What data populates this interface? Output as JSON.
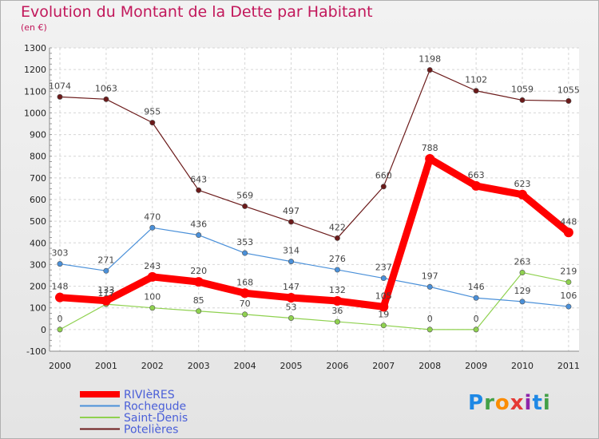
{
  "title": "Evolution du Montant de la Dette par Habitant",
  "subtitle": "(en €)",
  "logo": {
    "letters": [
      "P",
      "r",
      "o",
      "x",
      "i",
      "t",
      "i"
    ],
    "colors": [
      "#1e88e5",
      "#43a047",
      "#fb8c00",
      "#e53935",
      "#8e24aa",
      "#1e88e5",
      "#43a047"
    ]
  },
  "chart_data": {
    "type": "line",
    "x": [
      "2000",
      "2001",
      "2002",
      "2003",
      "2004",
      "2005",
      "2006",
      "2007",
      "2008",
      "2009",
      "2010",
      "2011"
    ],
    "ylim": [
      -100,
      1300
    ],
    "yticks": [
      -100,
      0,
      100,
      200,
      300,
      400,
      500,
      600,
      700,
      800,
      900,
      1000,
      1100,
      1200,
      1300
    ],
    "grid": true,
    "legend_position": "bottom-left",
    "series": [
      {
        "name": "RIVIèRES",
        "color": "#ff0000",
        "values": [
          148,
          133,
          243,
          220,
          168,
          147,
          132,
          105,
          788,
          663,
          623,
          448
        ]
      },
      {
        "name": "Rochegude",
        "color": "#4a90d9",
        "values": [
          303,
          271,
          470,
          436,
          353,
          314,
          276,
          237,
          197,
          146,
          129,
          106
        ]
      },
      {
        "name": "Saint-Denis",
        "color": "#8fd14f",
        "values": [
          0,
          117,
          100,
          85,
          70,
          53,
          36,
          19,
          0,
          0,
          263,
          219
        ]
      },
      {
        "name": "Potelières",
        "color": "#6b1a1a",
        "values": [
          1074,
          1063,
          955,
          643,
          569,
          497,
          422,
          660,
          1198,
          1102,
          1059,
          1055
        ]
      }
    ]
  }
}
